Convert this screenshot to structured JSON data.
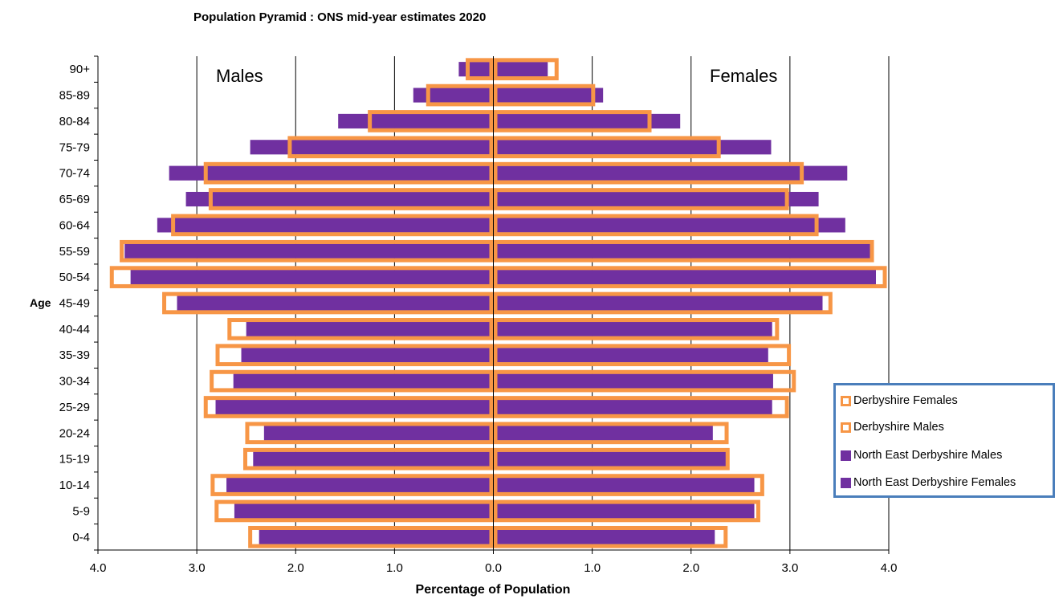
{
  "chart_data": {
    "type": "bar",
    "orientation": "horizontal-pyramid",
    "title": "Population Pyramid :  ONS mid-year estimates 2020",
    "xlabel": "Percentage of Population",
    "ylabel": "Age",
    "side_labels": {
      "left": "Males",
      "right": "Females"
    },
    "xlim": [
      -4.0,
      4.0
    ],
    "x_ticks": [
      -4,
      -3,
      -2,
      -1,
      0,
      1,
      2,
      3,
      4
    ],
    "x_tick_labels": [
      "4.0",
      "3.0",
      "2.0",
      "1.0",
      "0.0",
      "1.0",
      "2.0",
      "3.0",
      "4.0"
    ],
    "grid": "vertical major gridlines",
    "legend_position": "right",
    "categories": [
      "90+",
      "85-89",
      "80-84",
      "75-79",
      "70-74",
      "65-69",
      "60-64",
      "55-59",
      "50-54",
      "45-49",
      "40-44",
      "35-39",
      "30-34",
      "25-29",
      "20-24",
      "15-19",
      "10-14",
      "5-9",
      "0-4"
    ],
    "series": [
      {
        "name": "North East Derbyshire Males",
        "side": "left",
        "style": "filled",
        "color": "#7030a0",
        "values": [
          0.35,
          0.81,
          1.57,
          2.46,
          3.28,
          3.11,
          3.4,
          3.73,
          3.67,
          3.2,
          2.5,
          2.55,
          2.63,
          2.81,
          2.32,
          2.43,
          2.7,
          2.62,
          2.37
        ]
      },
      {
        "name": "North East Derbyshire Females",
        "side": "right",
        "style": "filled",
        "color": "#7030a0",
        "values": [
          0.55,
          1.11,
          1.89,
          2.81,
          3.58,
          3.29,
          3.56,
          3.82,
          3.87,
          3.33,
          2.82,
          2.78,
          2.83,
          2.82,
          2.22,
          2.38,
          2.64,
          2.64,
          2.24
        ]
      },
      {
        "name": "Derbyshire Males",
        "side": "left",
        "style": "outline",
        "color": "#f79646",
        "values": [
          0.28,
          0.68,
          1.27,
          2.08,
          2.93,
          2.88,
          3.26,
          3.78,
          3.88,
          3.35,
          2.69,
          2.81,
          2.87,
          2.93,
          2.51,
          2.53,
          2.86,
          2.82,
          2.48
        ]
      },
      {
        "name": "Derbyshire Females",
        "side": "right",
        "style": "outline",
        "color": "#f79646",
        "values": [
          0.66,
          1.03,
          1.6,
          2.3,
          3.14,
          2.99,
          3.29,
          3.85,
          3.98,
          3.43,
          2.89,
          3.01,
          3.06,
          2.99,
          2.38,
          2.39,
          2.74,
          2.7,
          2.37
        ]
      }
    ],
    "legend_order": [
      "Derbyshire Females",
      "Derbyshire Males",
      "North East Derbyshire Males",
      "North East Derbyshire Females"
    ]
  }
}
